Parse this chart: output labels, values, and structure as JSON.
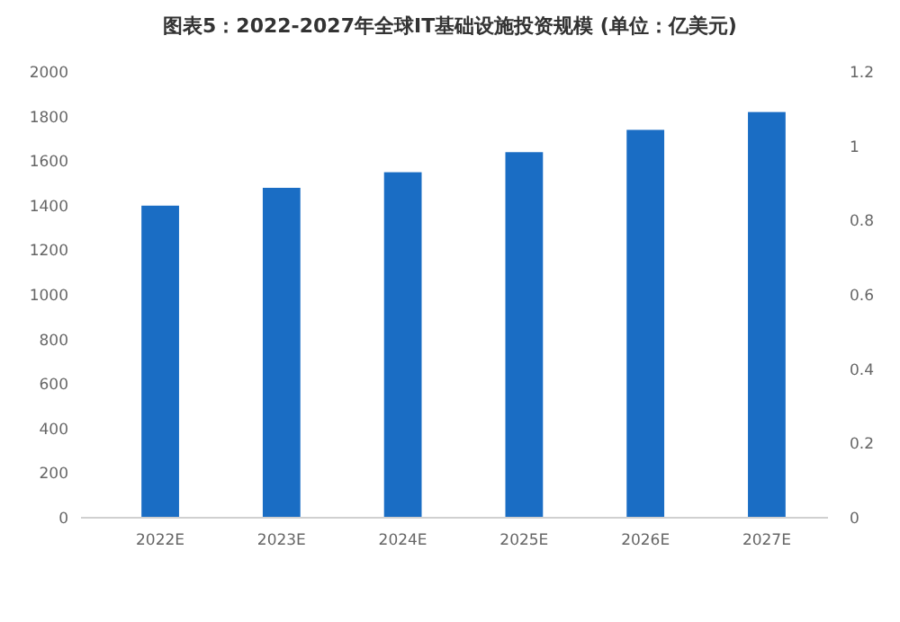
{
  "chart_data": {
    "type": "bar",
    "title": "图表5：2022-2027年全球IT基础设施投资规模 (单位：亿美元)",
    "categories": [
      "2022E",
      "2023E",
      "2024E",
      "2025E",
      "2026E",
      "2027E"
    ],
    "series": [
      {
        "color": "#1a6dc4",
        "values": [
          1400,
          1480,
          1550,
          1640,
          1740,
          1820
        ]
      }
    ],
    "ylim": [
      0,
      2000
    ],
    "yticks": [
      0,
      200,
      400,
      600,
      800,
      1000,
      1200,
      1400,
      1600,
      1800,
      2000
    ],
    "y2lim": [
      0,
      1.2
    ],
    "y2ticks": [
      0,
      0.2,
      0.4,
      0.6,
      0.8,
      {
        "value": 1,
        "label": "1"
      },
      1.2
    ],
    "grid": false
  }
}
